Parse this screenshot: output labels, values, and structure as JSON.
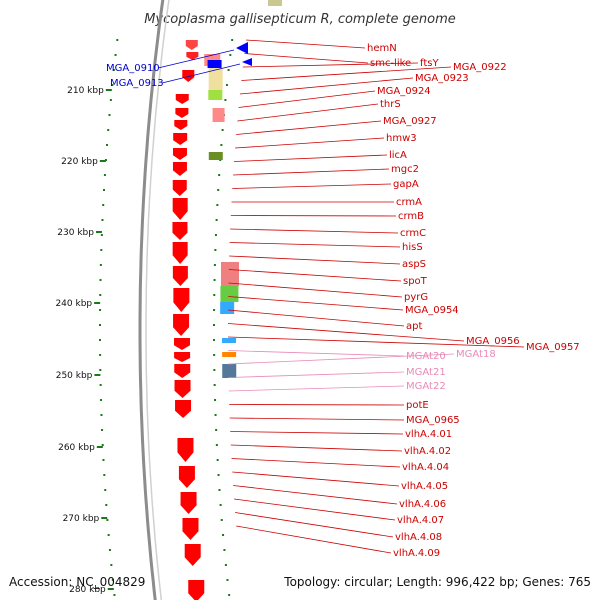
{
  "title": "Mycoplasma gallisepticum R, complete genome",
  "footer": {
    "accession": "Accession: NC_004829",
    "summary": "Topology: circular; Length: 996,422 bp; Genes: 765"
  },
  "colors": {
    "backbone": "#8c8c8c",
    "forward_gene": "#ff0000",
    "reverse_gene": "#0000ff",
    "label_red": "#cc0000",
    "label_blue": "#0000cc",
    "label_pink": "#e88ab8",
    "gc_dots": "#1a7a1a"
  },
  "kbp_ticks": [
    "210 kbp",
    "220 kbp",
    "230 kbp",
    "240 kbp",
    "250 kbp",
    "260 kbp",
    "270 kbp",
    "280 kbp"
  ],
  "labels_left": [
    "MGA_0910",
    "MGA_0913"
  ],
  "labels_right": [
    "hemN",
    "smc-like",
    "ftsY",
    "MGA_0922",
    "MGA_0923",
    "MGA_0924",
    "thrS",
    "MGA_0927",
    "hmw3",
    "licA",
    "mgc2",
    "gapA",
    "crmA",
    "crmB",
    "crmC",
    "hisS",
    "aspS",
    "spoT",
    "pyrG",
    "MGA_0954",
    "apt",
    "MGA_0956",
    "MGA_0957",
    "MGAt20",
    "MGAt18",
    "MGAt21",
    "MGAt22",
    "potE",
    "MGA_0965",
    "vlhA.4.01",
    "vlhA.4.02",
    "vlhA.4.04",
    "vlhA.4.05",
    "vlhA.4.06",
    "vlhA.4.07",
    "vlhA.4.08",
    "vlhA.4.09"
  ]
}
